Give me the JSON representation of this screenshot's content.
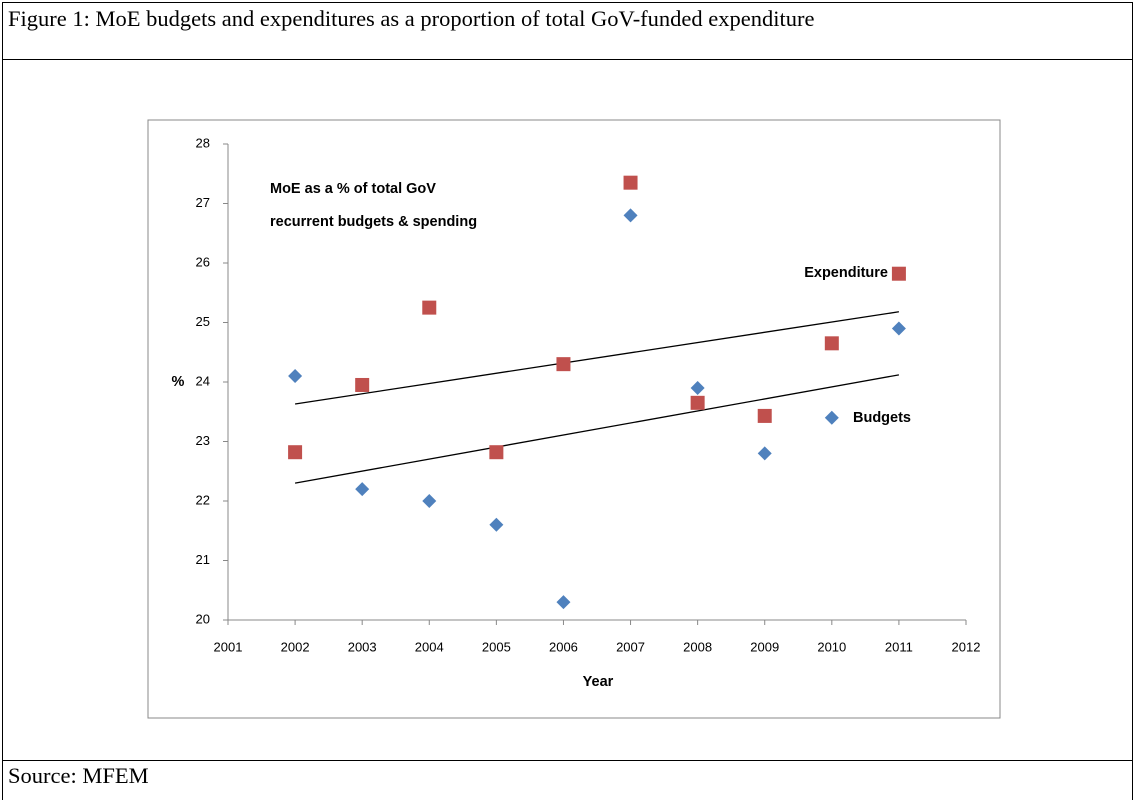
{
  "caption": "Figure 1: MoE budgets and expenditures as a proportion of total GoV-funded expenditure",
  "source": "Source: MFEM",
  "chart_data": {
    "type": "scatter",
    "annotation": [
      "MoE as a % of total GoV",
      "recurrent budgets & spending"
    ],
    "x_label": "Year",
    "y_label": "%",
    "xlim": [
      2001,
      2012
    ],
    "xticks": [
      2001,
      2002,
      2003,
      2004,
      2005,
      2006,
      2007,
      2008,
      2009,
      2010,
      2011,
      2012
    ],
    "ylim": [
      20,
      28
    ],
    "yticks": [
      20,
      21,
      22,
      23,
      24,
      25,
      26,
      27,
      28
    ],
    "series": [
      {
        "name": "Budgets",
        "color": "#4f81bd",
        "marker": "diamond",
        "x": [
          2002,
          2003,
          2004,
          2005,
          2006,
          2007,
          2008,
          2009,
          2010,
          2011
        ],
        "values": [
          24.1,
          22.2,
          22.0,
          21.6,
          20.3,
          26.8,
          23.9,
          22.8,
          23.4,
          24.9
        ],
        "trend": {
          "x": [
            2002,
            2011
          ],
          "values": [
            22.3,
            24.12
          ]
        }
      },
      {
        "name": "Expenditure",
        "color": "#c0504d",
        "marker": "square",
        "x": [
          2002,
          2003,
          2004,
          2005,
          2006,
          2007,
          2008,
          2009,
          2010,
          2011
        ],
        "values": [
          22.82,
          23.95,
          25.25,
          22.82,
          24.3,
          27.35,
          23.65,
          23.43,
          24.65,
          25.82
        ],
        "trend": {
          "x": [
            2002,
            2011
          ],
          "values": [
            23.63,
            25.18
          ]
        }
      }
    ]
  }
}
